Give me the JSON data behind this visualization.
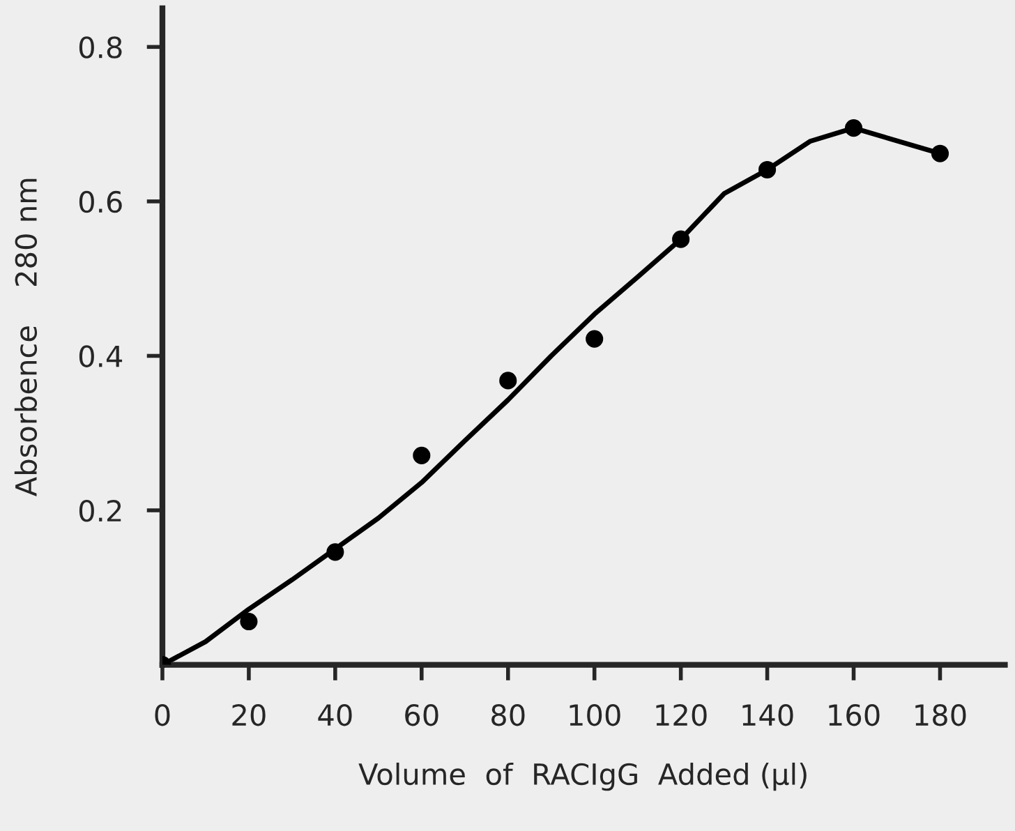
{
  "chart_data": {
    "type": "scatter",
    "xlabel": "Volume  of  RACIgG  Added (µl)",
    "ylabel": "Absorbence    280 nm",
    "xlim": [
      0,
      195
    ],
    "ylim": [
      0,
      0.85
    ],
    "xticks": [
      0,
      20,
      40,
      60,
      80,
      100,
      120,
      140,
      160,
      180
    ],
    "yticks": [
      0.2,
      0.4,
      0.6,
      0.8
    ],
    "grid": false,
    "legend": false,
    "series": [
      {
        "color": "#000000",
        "marker": "circle",
        "x": [
          0,
          20,
          40,
          60,
          80,
          100,
          120,
          140,
          160,
          180
        ],
        "values": [
          0,
          0.056,
          0.146,
          0.271,
          0.368,
          0.422,
          0.551,
          0.641,
          0.695,
          0.662
        ]
      },
      {
        "type": "line",
        "color": "#000000",
        "marker": "none",
        "line_style": "solid",
        "x": [
          0,
          10,
          20,
          30,
          40,
          50,
          60,
          70,
          80,
          90,
          100,
          110,
          120,
          130,
          140,
          150,
          160,
          180
        ],
        "values": [
          0,
          0.03,
          0.072,
          0.11,
          0.15,
          0.19,
          0.236,
          0.29,
          0.343,
          0.4,
          0.454,
          0.502,
          0.551,
          0.61,
          0.641,
          0.678,
          0.695,
          0.662
        ]
      }
    ]
  }
}
